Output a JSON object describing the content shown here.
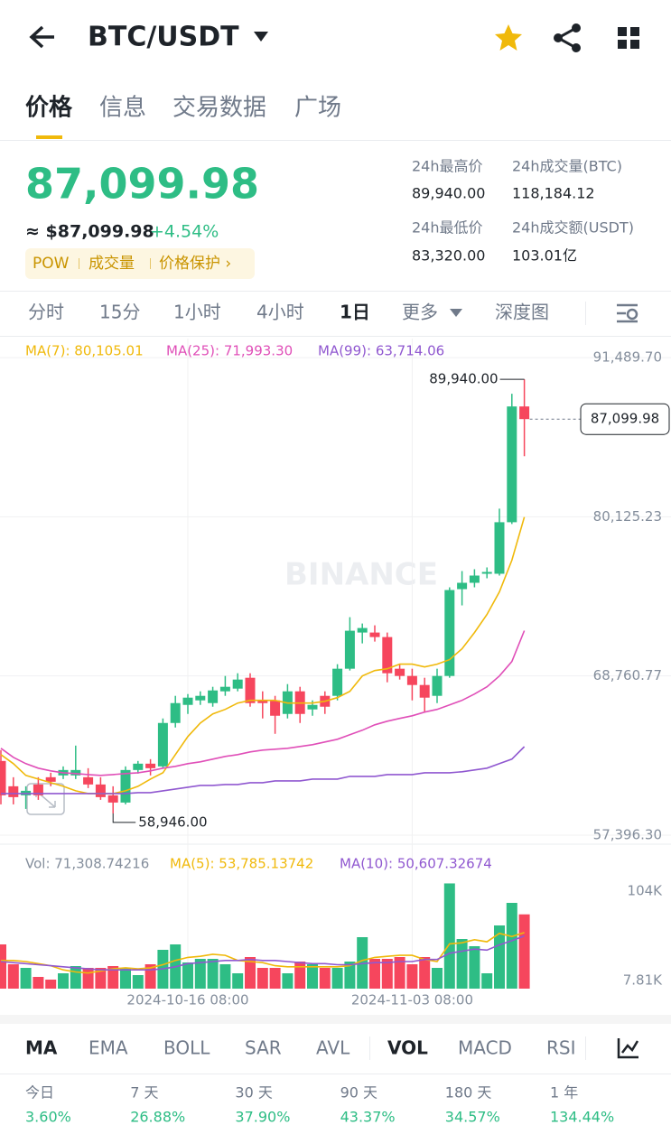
{
  "header": {
    "pair": "BTC/USDT",
    "tabs": [
      "价格",
      "信息",
      "交易数据",
      "广场"
    ]
  },
  "ticker": {
    "price": "87,099.98",
    "usd_price": "≈ $87,099.98",
    "change": "+4.54%",
    "tags": [
      "POW",
      "成交量",
      "价格保护 ›"
    ],
    "stats": [
      {
        "label": "24h最高价",
        "value": "89,940.00"
      },
      {
        "label": "24h成交量(BTC)",
        "value": "118,184.12"
      },
      {
        "label": "24h最低价",
        "value": "83,320.00"
      },
      {
        "label": "24h成交额(USDT)",
        "value": "103.01亿"
      }
    ]
  },
  "toolbar": {
    "intervals": [
      "分时",
      "15分",
      "1小时",
      "4小时",
      "1日",
      "更多",
      "深度图"
    ]
  },
  "chart_data": [
    {
      "type": "candlestick",
      "up_color": "#2ebd85",
      "down_color": "#f6465d",
      "grid": true,
      "ylim": [
        56750,
        92850
      ],
      "yticks": [
        {
          "value": 91489.7,
          "label": "91,489.70"
        },
        {
          "value": 80125.23,
          "label": "80,125.23"
        },
        {
          "value": 68760.77,
          "label": "68,760.77"
        },
        {
          "value": 57396.3,
          "label": "57,396.30"
        }
      ],
      "open": [
        62692,
        60884,
        60238,
        61013,
        61530,
        61659,
        61659,
        61530,
        61013,
        60238,
        59722,
        62046,
        62498,
        62304,
        65404,
        66695,
        67018,
        66824,
        67664,
        67857,
        68632,
        67018,
        67018,
        66049,
        67664,
        66372,
        67341,
        67341,
        69278,
        71861,
        71861,
        71538,
        69278,
        68761,
        68116,
        67341,
        68761,
        74960,
        75412,
        76058,
        76058,
        79738,
        88003
      ],
      "high": [
        63467,
        61530,
        60884,
        61530,
        61852,
        62304,
        63789,
        62175,
        61530,
        60884,
        62304,
        62692,
        62821,
        65727,
        67341,
        67470,
        67664,
        67987,
        68761,
        68955,
        68955,
        67664,
        67341,
        68180,
        67987,
        67018,
        67664,
        69601,
        72958,
        72506,
        72377,
        71861,
        69601,
        69278,
        68632,
        69278,
        75089,
        76251,
        76381,
        76510,
        80707,
        88907,
        89940
      ],
      "low": [
        59592,
        59592,
        59270,
        59915,
        60884,
        61400,
        61400,
        60755,
        59915,
        58946,
        59592,
        61788,
        61659,
        62175,
        65081,
        66049,
        66695,
        66566,
        67341,
        67664,
        66566,
        65727,
        64629,
        65727,
        65404,
        65920,
        66049,
        67018,
        69149,
        71086,
        71215,
        68309,
        68503,
        67018,
        66179,
        66824,
        68632,
        73798,
        75089,
        75735,
        75929,
        79609,
        84452
      ],
      "close": [
        60238,
        60109,
        60561,
        60238,
        61207,
        62046,
        62046,
        61013,
        60109,
        59722,
        62046,
        62498,
        62175,
        65404,
        66824,
        67212,
        67341,
        67728,
        67987,
        68503,
        66824,
        66824,
        65920,
        67664,
        66049,
        66695,
        66566,
        69278,
        71990,
        72184,
        71538,
        68955,
        68761,
        68116,
        67212,
        68761,
        74896,
        75412,
        75929,
        76187,
        79738,
        88003,
        87099.98
      ],
      "series": [
        {
          "name": "MA(7): 80,105.01",
          "color": "#f0b90b",
          "values": [
            63144,
            62498,
            61659,
            61400,
            61142,
            60884,
            60561,
            60367,
            60367,
            60367,
            60561,
            60884,
            61400,
            61852,
            63144,
            64435,
            65404,
            66049,
            66372,
            66824,
            67018,
            67018,
            67018,
            66824,
            66824,
            66824,
            66953,
            67212,
            67664,
            68761,
            69149,
            69278,
            69601,
            69601,
            69407,
            69601,
            69924,
            70698,
            71861,
            73152,
            74766,
            77026,
            80105.01
          ]
        },
        {
          "name": "MA(25): 71,993.30",
          "color": "#e04fb8",
          "values": [
            63596,
            62950,
            62498,
            62175,
            61982,
            61852,
            61788,
            61723,
            61659,
            61723,
            61788,
            61852,
            61982,
            62175,
            62304,
            62498,
            62627,
            62821,
            63015,
            63144,
            63337,
            63467,
            63531,
            63596,
            63725,
            63854,
            64048,
            64241,
            64564,
            64887,
            65275,
            65533,
            65727,
            65920,
            66179,
            66372,
            66695,
            67018,
            67470,
            67987,
            68761,
            69794,
            71993.3
          ]
        },
        {
          "name": "MA(99): 63,714.06",
          "color": "#9058d0",
          "values": [
            60367,
            60367,
            60367,
            60367,
            60367,
            60367,
            60367,
            60367,
            60367,
            60367,
            60367,
            60432,
            60432,
            60561,
            60690,
            60819,
            60948,
            60948,
            61013,
            61013,
            61142,
            61142,
            61271,
            61271,
            61271,
            61400,
            61400,
            61400,
            61594,
            61594,
            61594,
            61723,
            61723,
            61723,
            61852,
            61852,
            61852,
            61917,
            62046,
            62175,
            62498,
            62821,
            63714.06
          ]
        }
      ],
      "annotations": {
        "high": "89,940.00",
        "low": "58,946.00",
        "last": "87,099.98",
        "watermark": "BINANCE"
      }
    },
    {
      "type": "bar",
      "label": "Vol: 71,308.74216",
      "categories": [
        null,
        null,
        null,
        null,
        null,
        null,
        null,
        null,
        null,
        null,
        null,
        null,
        null,
        null,
        null,
        "2024-10-16 08:00",
        null,
        null,
        null,
        null,
        null,
        null,
        null,
        null,
        null,
        null,
        null,
        null,
        null,
        null,
        null,
        null,
        null,
        "2024-11-03 08:00",
        null,
        null,
        null,
        null,
        null,
        null,
        null,
        null,
        null
      ],
      "values": [
        42467,
        23400,
        19933,
        11267,
        8667,
        14733,
        21667,
        19933,
        19933,
        21667,
        19933,
        13000,
        23400,
        37267,
        42467,
        25133,
        28600,
        28600,
        23400,
        14733,
        30333,
        19933,
        19933,
        14733,
        26000,
        23400,
        19933,
        19933,
        26000,
        49400,
        28600,
        28600,
        30333,
        23400,
        30333,
        19933,
        101000,
        47667,
        40733,
        14733,
        60667,
        82333,
        71308.74216
      ],
      "ylim": [
        0,
        104000
      ],
      "yticks": [
        {
          "value": 104000,
          "label": "104K"
        },
        {
          "value": 7810,
          "label": "7.81K"
        }
      ],
      "series": [
        {
          "name": "MA(5): 53,785.13742",
          "color": "#f0b90b",
          "values": [
            27000,
            27000,
            26000,
            24000,
            22000,
            18000,
            16000,
            15000,
            17000,
            19000,
            20000,
            19000,
            20000,
            23000,
            27000,
            30000,
            31000,
            33000,
            32000,
            27000,
            26000,
            25000,
            22000,
            21000,
            21000,
            21000,
            21000,
            21000,
            22000,
            27000,
            30000,
            31000,
            32000,
            32000,
            28000,
            26000,
            43000,
            44000,
            47000,
            45000,
            53000,
            50000,
            53785.13742
          ]
        },
        {
          "name": "MA(10): 50,607.32674",
          "color": "#9058d0",
          "values": [
            26000,
            25000,
            24000,
            23000,
            22000,
            21000,
            20000,
            19000,
            18000,
            18000,
            18000,
            18000,
            18000,
            19000,
            21000,
            24000,
            25000,
            26000,
            27000,
            27000,
            28000,
            27000,
            27000,
            26000,
            25000,
            24000,
            24000,
            23000,
            23000,
            24000,
            25000,
            25000,
            26000,
            26000,
            28000,
            28000,
            34000,
            36000,
            38000,
            37000,
            42000,
            46000,
            50607.32674
          ]
        }
      ]
    }
  ],
  "indicators": [
    "MA",
    "EMA",
    "BOLL",
    "SAR",
    "AVL",
    "VOL",
    "MACD",
    "RSI"
  ],
  "returns": [
    {
      "label": "今日",
      "value": "3.60%"
    },
    {
      "label": "7 天",
      "value": "26.88%"
    },
    {
      "label": "30 天",
      "value": "37.90%"
    },
    {
      "label": "90 天",
      "value": "43.37%"
    },
    {
      "label": "180 天",
      "value": "34.57%"
    },
    {
      "label": "1 年",
      "value": "134.44%"
    }
  ]
}
